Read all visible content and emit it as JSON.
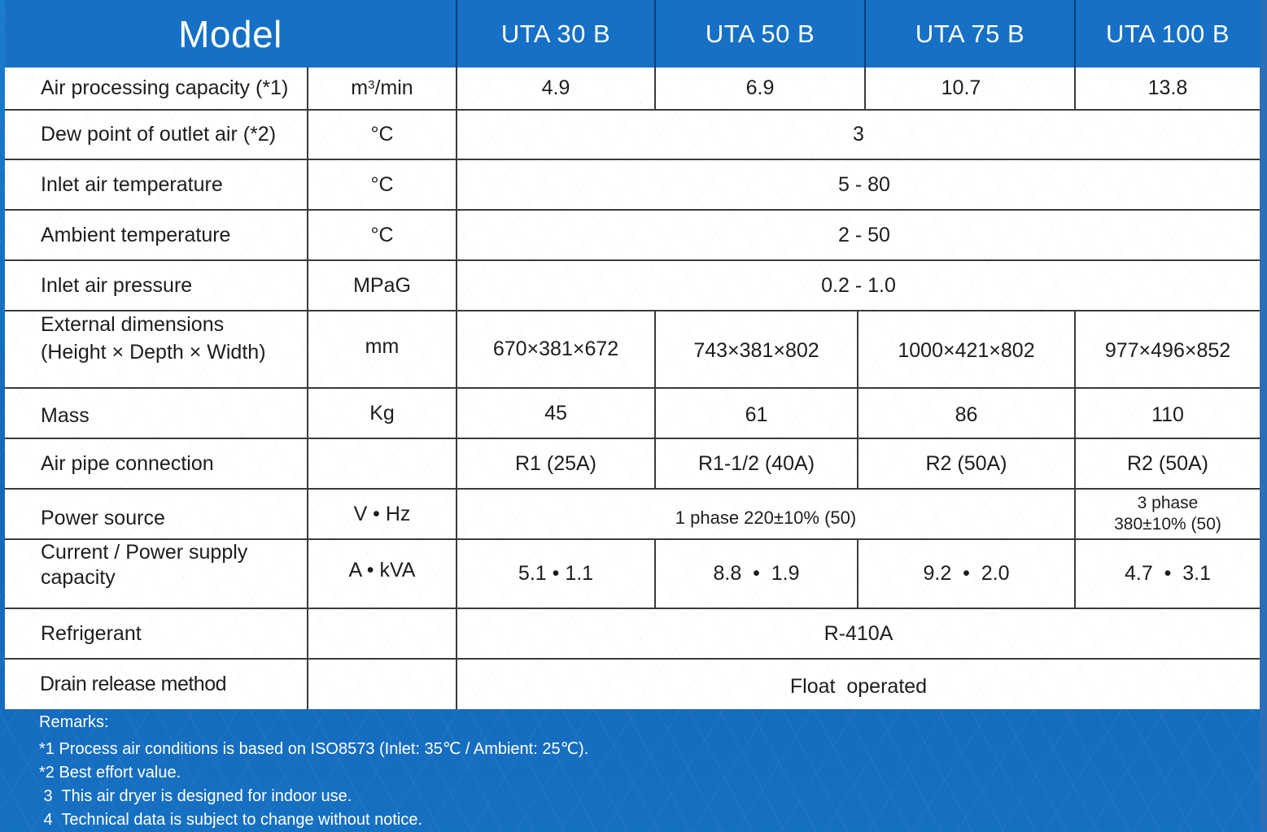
{
  "header": {
    "model_label": "Model",
    "models": [
      "UTA 30 B",
      "UTA 50 B",
      "UTA 75 B",
      "UTA 100 B"
    ]
  },
  "rows": {
    "air_processing": {
      "label": "Air processing capacity (*1)",
      "unit_base": "m",
      "unit_sup": "3",
      "unit_rest": "/min",
      "values": [
        "4.9",
        "6.9",
        "10.7",
        "13.8"
      ]
    },
    "dew_point": {
      "label": "Dew point of outlet air (*2)",
      "unit": "°C",
      "value": "3"
    },
    "inlet_temp": {
      "label": "Inlet air temperature",
      "unit": "°C",
      "value": "5 - 80"
    },
    "ambient_temp": {
      "label": "Ambient temperature",
      "unit": "°C",
      "value": "2 - 50"
    },
    "inlet_pressure": {
      "label": "Inlet air pressure",
      "unit": "MPaG",
      "value": "0.2 - 1.0"
    },
    "dimensions": {
      "label_line1": "External dimensions",
      "label_line2": "(Height × Depth × Width)",
      "unit": "mm",
      "values": [
        "670×381×672",
        "743×381×802",
        "1000×421×802",
        "977×496×852"
      ]
    },
    "mass": {
      "label": "Mass",
      "unit": "Kg",
      "values": [
        "45",
        "61",
        "86",
        "110"
      ]
    },
    "pipe": {
      "label": "Air pipe connection",
      "unit": "",
      "values": [
        "R1 (25A)",
        "R1-1/2 (40A)",
        "R2 (50A)",
        "R2 (50A)"
      ]
    },
    "power": {
      "label": "Power source",
      "unit": "V • Hz",
      "value_single": "1 phase 220±10% (50)",
      "value_three_line1": "3 phase",
      "value_three_line2": "380±10% (50)"
    },
    "current": {
      "label_line1": "Current / Power supply",
      "label_line2": "capacity",
      "unit": "A • kVA",
      "values": [
        "5.1 • 1.1",
        "8.8  •  1.9",
        "9.2  •  2.0",
        "4.7  •  3.1"
      ]
    },
    "refrigerant": {
      "label": "Refrigerant",
      "unit": "",
      "value": "R-410A"
    },
    "drain": {
      "label": "Drain release method",
      "unit": "",
      "value": "Float  operated"
    }
  },
  "remarks": {
    "title": "Remarks:",
    "lines": [
      "*1 Process air conditions is based on ISO8573 (Inlet: 35℃ / Ambient: 25℃).",
      "*2 Best effort value.",
      " 3  This air dryer is designed for indoor use.",
      " 4  Technical data is subject to change without notice."
    ]
  },
  "colors": {
    "header_blue": "#1570c6",
    "background_blue": "#1673c4",
    "grid_line": "#3b3b3b"
  }
}
